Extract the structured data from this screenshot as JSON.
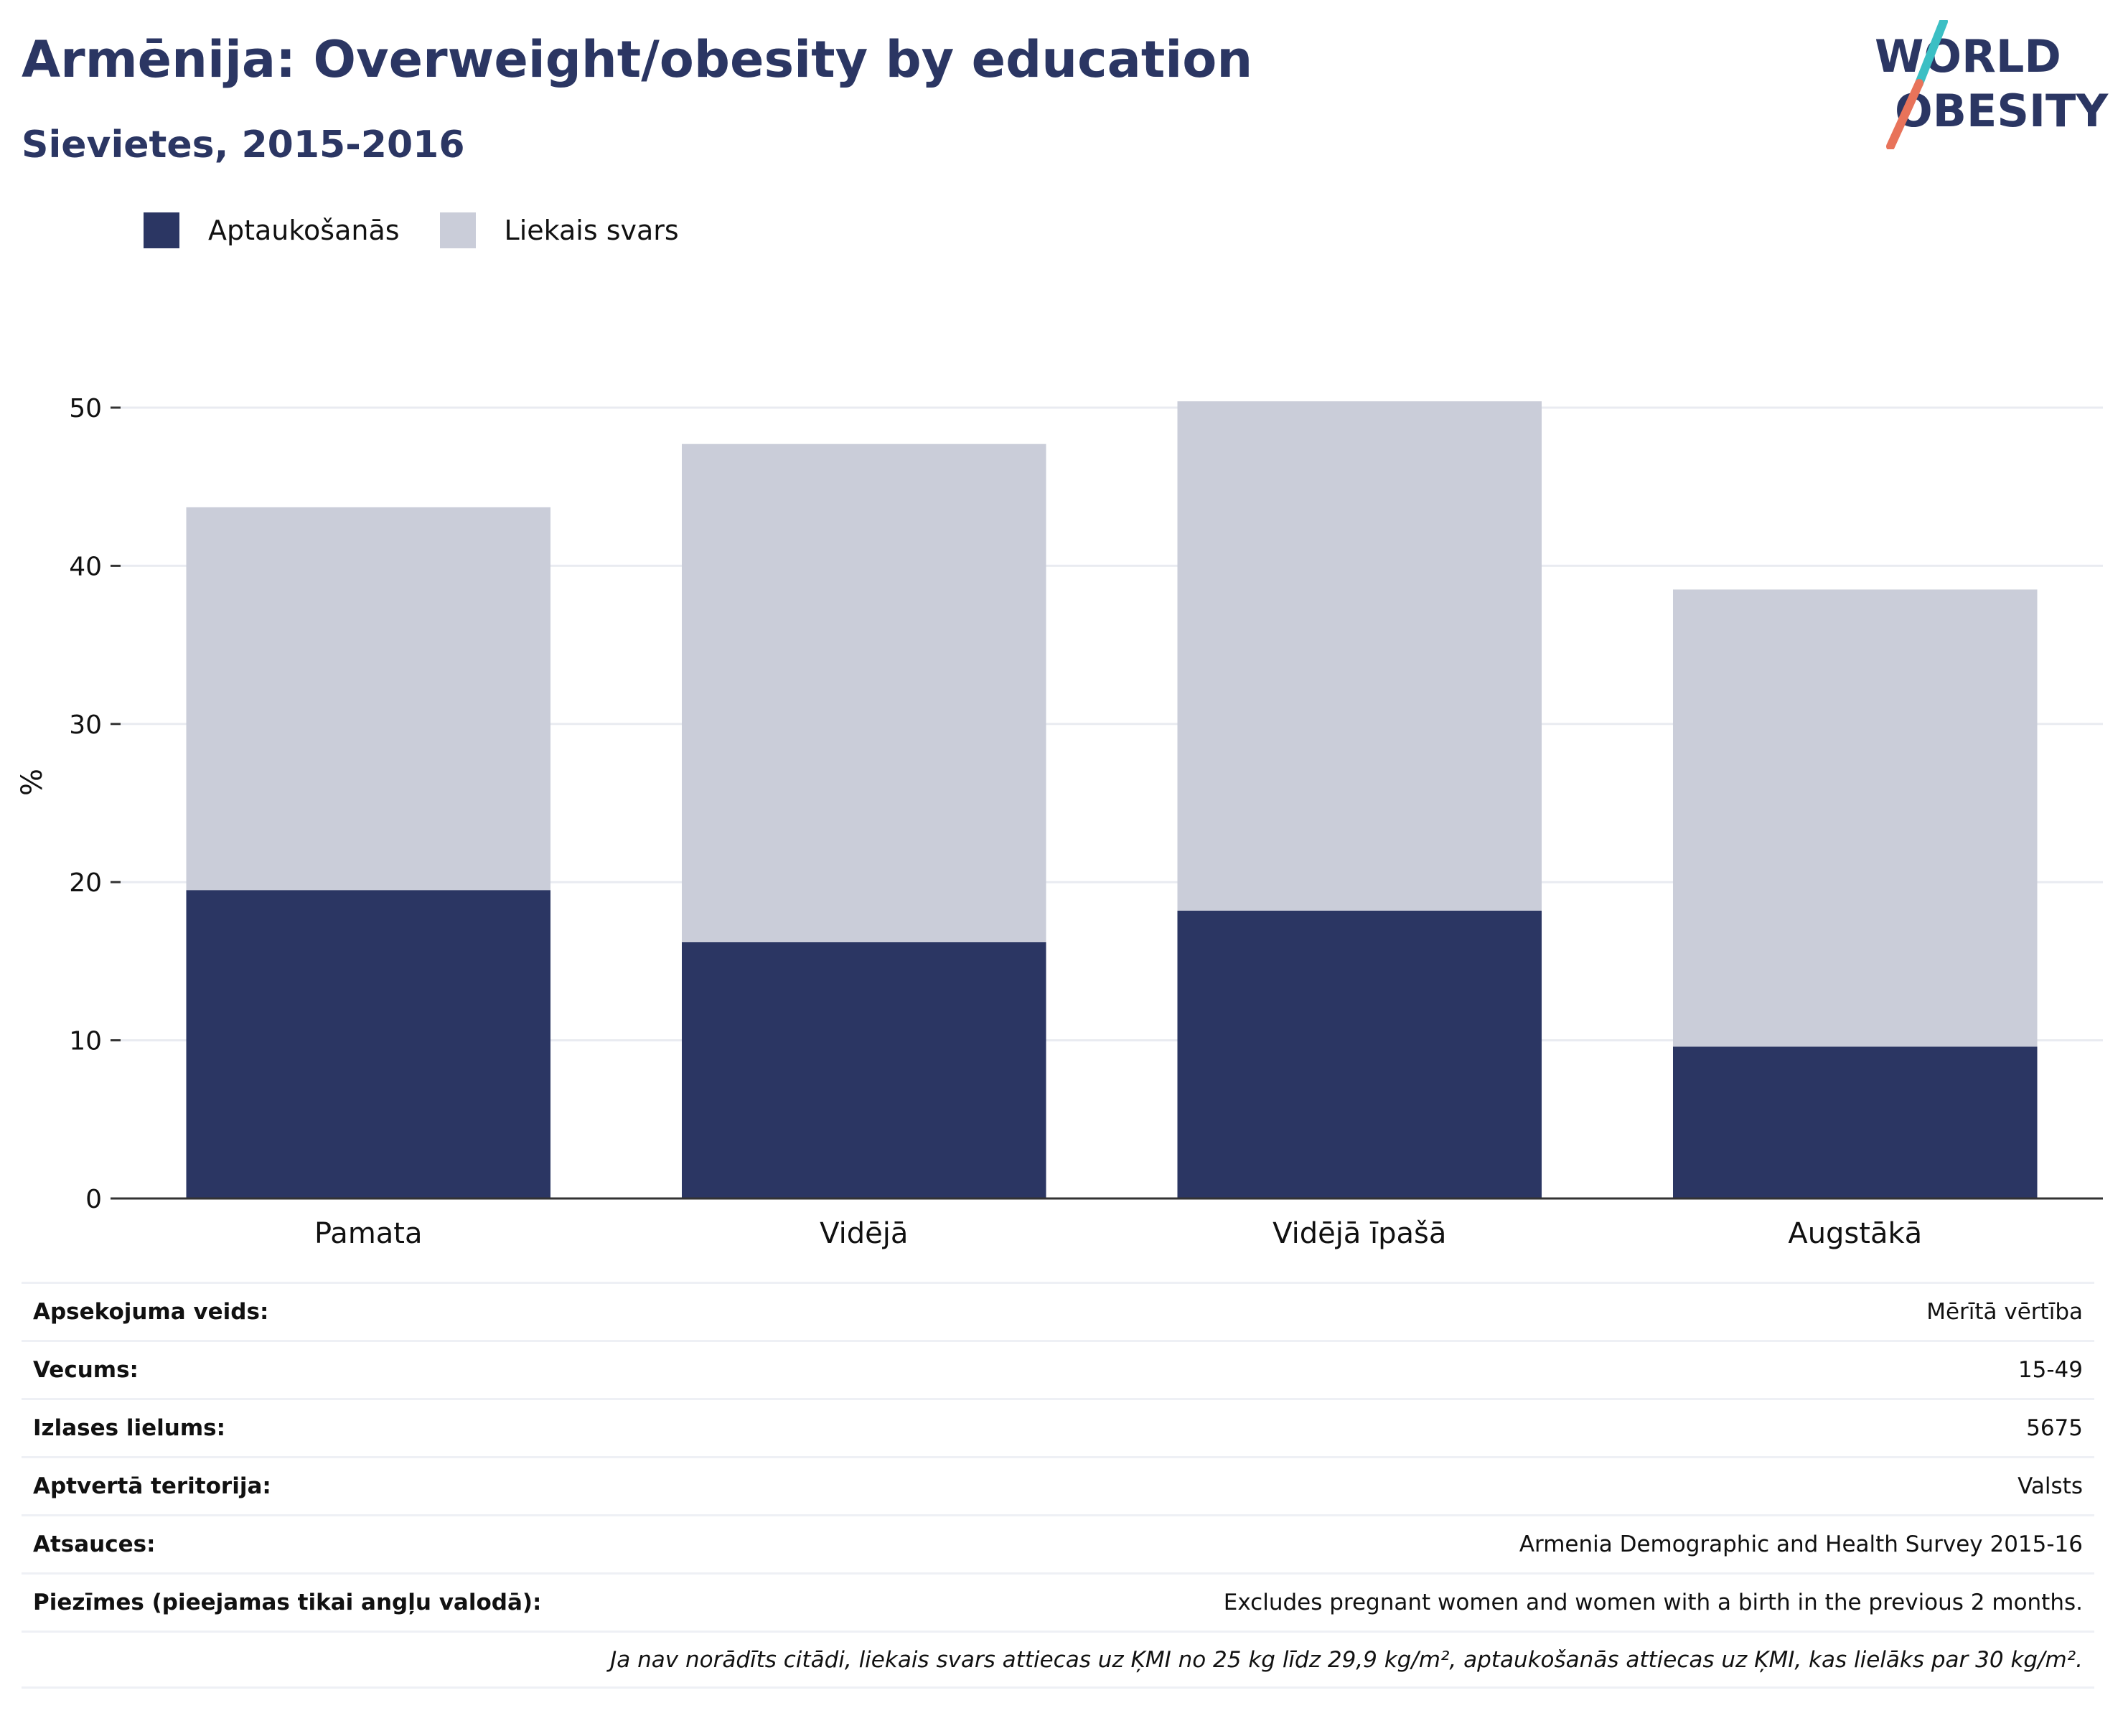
{
  "header": {
    "title": "Armēnija: Overweight/obesity by education",
    "subtitle": "Sievietes, 2015-2016",
    "logo_line1": "WORLD",
    "logo_line2": "OBESITY"
  },
  "colors": {
    "obesity": "#2b3663",
    "overweight": "#cacdd9",
    "title": "#2b3663",
    "logo_teal": "#3bbfc4",
    "logo_coral": "#e8735a",
    "grid": "#e9ebf1",
    "axis": "#333333"
  },
  "legend": [
    {
      "label": "Aptaukošanās",
      "color": "#2b3663"
    },
    {
      "label": "Liekais svars",
      "color": "#cacdd9"
    }
  ],
  "chart_data": {
    "type": "bar",
    "stacked": true,
    "categories": [
      "Pamata",
      "Vidējā",
      "Vidējā īpašā",
      "Augstākā"
    ],
    "series": [
      {
        "name": "Aptaukošanās",
        "values": [
          19.5,
          16.2,
          18.2,
          9.6
        ]
      },
      {
        "name": "Liekais svars",
        "values": [
          24.2,
          31.5,
          32.2,
          28.9
        ]
      }
    ],
    "xlabel": "",
    "ylabel": "%",
    "ylim": [
      0,
      50
    ],
    "yticks": [
      0,
      10,
      20,
      30,
      40,
      50
    ],
    "grid": true,
    "legend_position": "top-left"
  },
  "meta": {
    "rows": [
      {
        "key": "Apsekojuma veids:",
        "value": "Mērītā vērtība"
      },
      {
        "key": "Vecums:",
        "value": "15-49"
      },
      {
        "key": "Izlases lielums:",
        "value": "5675"
      },
      {
        "key": "Aptvertā teritorija:",
        "value": "Valsts"
      },
      {
        "key": "Atsauces:",
        "value": "Armenia Demographic and Health Survey 2015-16"
      },
      {
        "key": "Piezīmes (pieejamas tikai angļu valodā):",
        "value": "Excludes pregnant women and women with a birth in the previous 2 months."
      }
    ],
    "footnote": "Ja nav norādīts citādi, liekais svars attiecas uz ĶMI no 25 kg līdz 29,9 kg/m², aptaukošanās attiecas uz ĶMI, kas lielāks par 30 kg/m²."
  }
}
